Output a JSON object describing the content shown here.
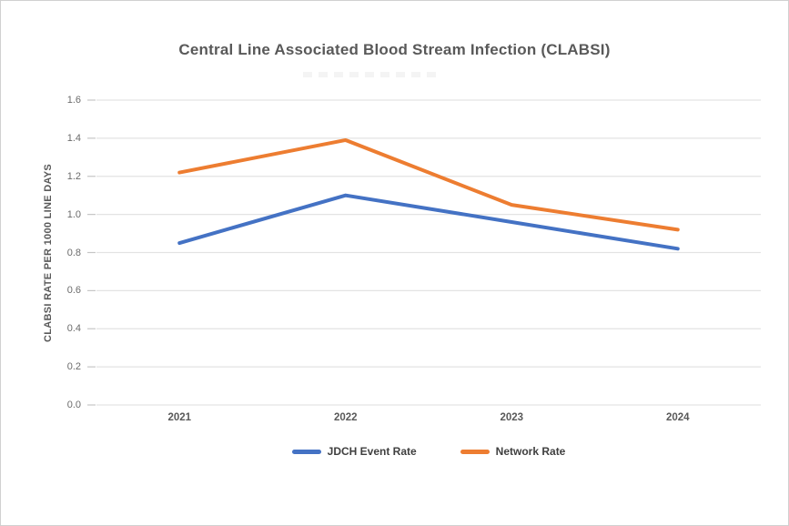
{
  "chart_data": {
    "type": "line",
    "title": "Central Line Associated Blood Stream Infection (CLABSI)",
    "ylabel": "CLABSI RATE PER 1000 LINE DAYS",
    "xlabel": "",
    "categories": [
      "2021",
      "2022",
      "2023",
      "2024"
    ],
    "series": [
      {
        "name": "JDCH Event Rate",
        "color": "#4472C4",
        "values": [
          0.85,
          1.1,
          0.96,
          0.82
        ]
      },
      {
        "name": "Network Rate",
        "color": "#ED7D31",
        "values": [
          1.22,
          1.39,
          1.05,
          0.92
        ]
      }
    ],
    "ylim": [
      0.0,
      1.6
    ],
    "yticks": [
      0.0,
      0.2,
      0.4,
      0.6,
      0.8,
      1.0,
      1.2,
      1.4,
      1.6
    ],
    "grid": "horizontal",
    "legend_position": "bottom"
  },
  "colors": {
    "series_blue": "#4472C4",
    "series_orange": "#ED7D31",
    "gridline": "#e3e3e3",
    "tick_mark": "#c6c6c6",
    "axis_tick_text": "#6b6b6b",
    "title_text": "#595959",
    "legend_text": "#3f3f3f",
    "frame_border": "#d0d0d0",
    "background": "#ffffff"
  }
}
